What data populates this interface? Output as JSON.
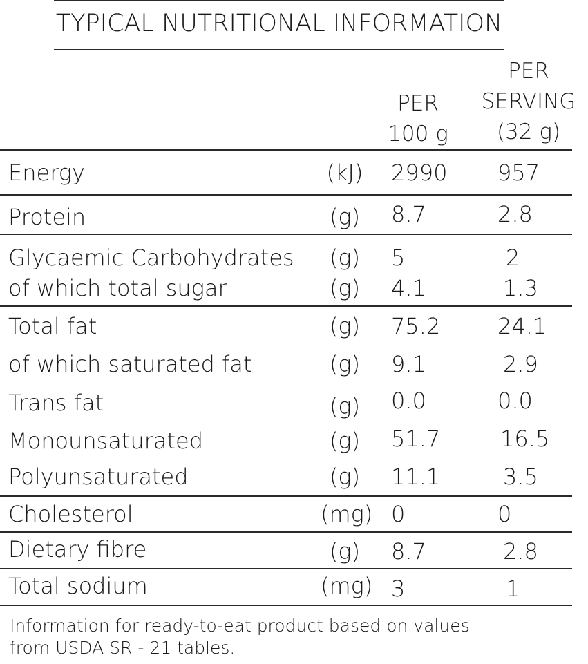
{
  "title": "TYPICAL NUTRITIONAL INFORMATION",
  "headers": {
    "per_100_line1": "PER",
    "per_100_line2": "100 g",
    "per_serving_line1": "PER",
    "per_serving_line2": "SERVING",
    "per_serving_line3": "(32 g)"
  },
  "rows": [
    {
      "name": "Energy",
      "unit": "(kJ)",
      "per100": "2990",
      "serving": "957"
    },
    {
      "name": "Protein",
      "unit": "(g)",
      "per100": "8.7",
      "serving": "2.8"
    },
    {
      "name": "Glycaemic Carbohydrates",
      "unit": "(g)",
      "per100": "5",
      "serving": "2"
    },
    {
      "name": "of which total sugar",
      "unit": "(g)",
      "per100": "4.1",
      "serving": "1.3"
    },
    {
      "name": "Total fat",
      "unit": "(g)",
      "per100": "75.2",
      "serving": "24.1"
    },
    {
      "name": "of which saturated fat",
      "unit": "(g)",
      "per100": "9.1",
      "serving": "2.9"
    },
    {
      "name": "Trans fat",
      "unit": "(g)",
      "per100": "0.0",
      "serving": "0.0"
    },
    {
      "name": "Monounsaturated",
      "unit": "(g)",
      "per100": "51.7",
      "serving": "16.5"
    },
    {
      "name": "Polyunsaturated",
      "unit": "(g)",
      "per100": "11.1",
      "serving": "3.5"
    },
    {
      "name": "Cholesterol",
      "unit": "(mg)",
      "per100": "0",
      "serving": "0"
    },
    {
      "name": "Dietary fibre",
      "unit": "(g)",
      "per100": "8.7",
      "serving": "2.8"
    },
    {
      "name": "Total sodium",
      "unit": "(mg)",
      "per100": "3",
      "serving": "1"
    }
  ],
  "footnote": {
    "line1": "Information for ready-to-eat product based on values",
    "line2": "from USDA SR - 21 tables."
  }
}
